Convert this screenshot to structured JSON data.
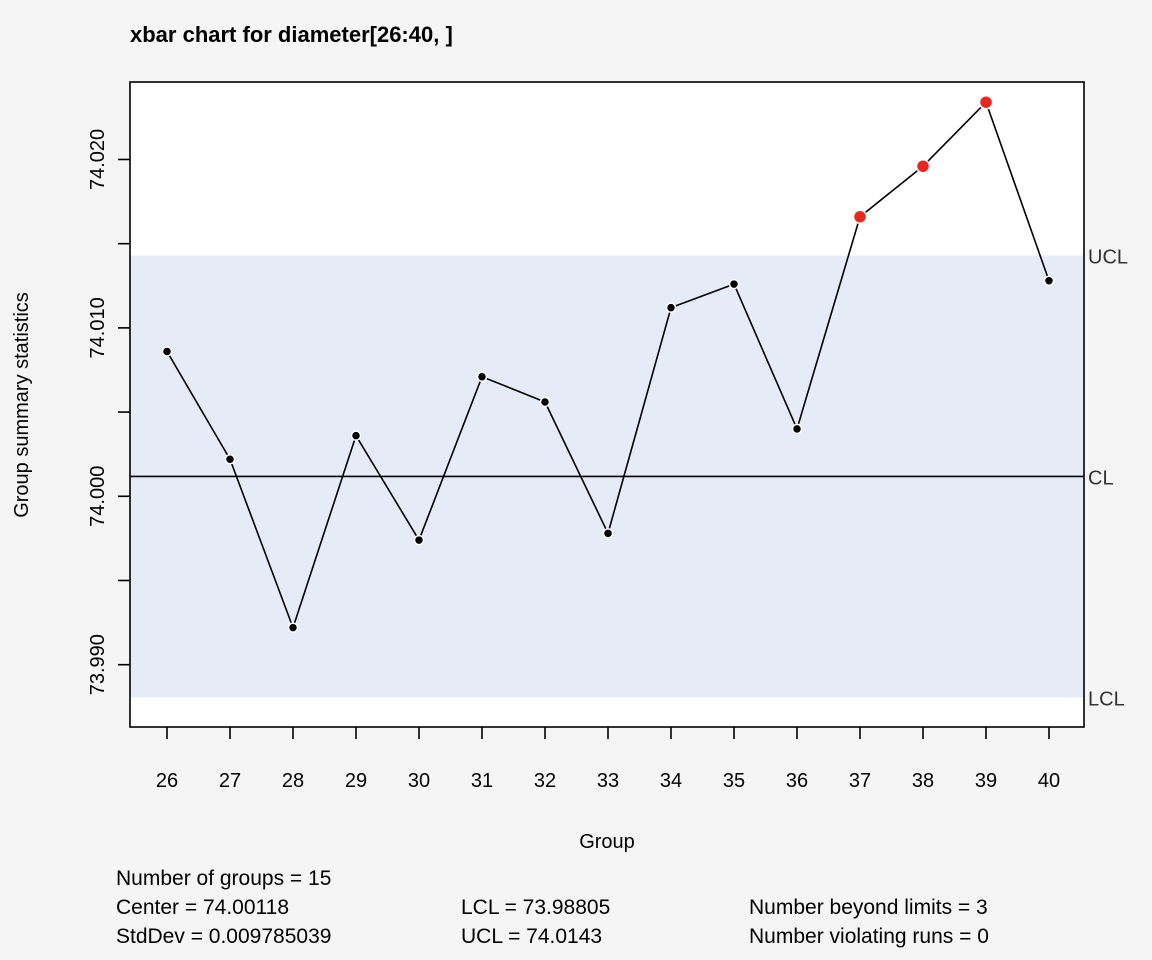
{
  "chart_data": {
    "type": "line",
    "title": "xbar chart for diameter[26:40, ]",
    "xlabel": "Group",
    "ylabel": "Group summary statistics",
    "x": [
      26,
      27,
      28,
      29,
      30,
      31,
      32,
      33,
      34,
      35,
      36,
      37,
      38,
      39,
      40
    ],
    "values": [
      74.0086,
      74.0022,
      73.9922,
      74.0036,
      73.9974,
      74.0071,
      74.0056,
      73.9978,
      74.0112,
      74.0126,
      74.004,
      74.0166,
      74.0196,
      74.0234,
      74.0128
    ],
    "beyond_limits_groups": [
      37,
      38,
      39
    ],
    "ylim": [
      73.9863,
      74.0246
    ],
    "y_ticks": [
      73.99,
      73.995,
      74.0,
      74.005,
      74.01,
      74.015,
      74.02
    ],
    "y_tick_labels": [
      "73.990",
      "",
      "74.000",
      "",
      "74.010",
      "",
      "74.020"
    ],
    "center": 74.00118,
    "lcl": 73.98805,
    "ucl": 74.0143,
    "limit_labels": {
      "ucl": "UCL",
      "cl": "CL",
      "lcl": "LCL"
    },
    "colors": {
      "background": "#f5f5f5",
      "plot_area": "#ffffff",
      "control_band": "#e6ecf7",
      "point": "#000000",
      "violation_point": "#e8281e",
      "line": "#000000"
    },
    "grid": false,
    "legend": "none"
  },
  "stats": {
    "groups_text": "Number of groups = 15",
    "center_text": "Center = 74.00118",
    "stddev_text": "StdDev = 0.009785039",
    "lcl_text": "LCL = 73.98805",
    "ucl_text": "UCL = 74.0143",
    "beyond_text": "Number beyond limits = 3",
    "runs_text": "Number violating runs = 0"
  }
}
